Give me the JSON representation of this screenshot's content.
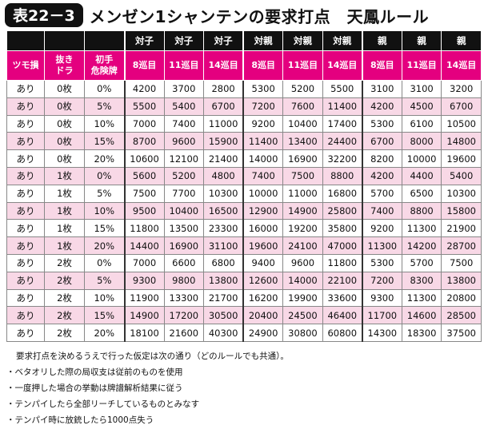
{
  "header": {
    "badge": "表22－3",
    "title": "メンゼン1シャンテンの要求打点　天鳳ルール"
  },
  "table": {
    "header_top": [
      "",
      "",
      "",
      "対子",
      "対子",
      "対子",
      "対親",
      "対親",
      "対親",
      "親",
      "親",
      "親"
    ],
    "header": [
      "ツモ損",
      "抜き\nドラ",
      "初手\n危険牌",
      "8巡目",
      "11巡目",
      "14巡目",
      "8巡目",
      "11巡目",
      "14巡目",
      "8巡目",
      "11巡目",
      "14巡目"
    ],
    "rows": [
      [
        "あり",
        "0枚",
        "0%",
        4200,
        3700,
        2800,
        5300,
        5200,
        5500,
        3100,
        3100,
        3200
      ],
      [
        "あり",
        "0枚",
        "5%",
        5500,
        5400,
        6700,
        7200,
        7600,
        11400,
        4200,
        4500,
        6700
      ],
      [
        "あり",
        "0枚",
        "10%",
        7000,
        7400,
        11000,
        9200,
        10400,
        17400,
        5300,
        6100,
        10500
      ],
      [
        "あり",
        "0枚",
        "15%",
        8700,
        9600,
        15900,
        11400,
        13400,
        24400,
        6700,
        8000,
        14800
      ],
      [
        "あり",
        "0枚",
        "20%",
        10600,
        12100,
        21400,
        14000,
        16900,
        32200,
        8200,
        10000,
        19600
      ],
      [
        "あり",
        "1枚",
        "0%",
        5600,
        5200,
        4800,
        7400,
        7500,
        8800,
        4200,
        4400,
        5400
      ],
      [
        "あり",
        "1枚",
        "5%",
        7500,
        7700,
        10300,
        10000,
        11000,
        16800,
        5700,
        6500,
        10300
      ],
      [
        "あり",
        "1枚",
        "10%",
        9500,
        10400,
        16500,
        12900,
        14900,
        25800,
        7400,
        8800,
        15800
      ],
      [
        "あり",
        "1枚",
        "15%",
        11800,
        13500,
        23300,
        16000,
        19200,
        35800,
        9200,
        11300,
        21900
      ],
      [
        "あり",
        "1枚",
        "20%",
        14400,
        16900,
        31100,
        19600,
        24100,
        47000,
        11300,
        14200,
        28700
      ],
      [
        "あり",
        "2枚",
        "0%",
        7000,
        6600,
        6800,
        9400,
        9600,
        11800,
        5300,
        5700,
        7500
      ],
      [
        "あり",
        "2枚",
        "5%",
        9300,
        9800,
        13800,
        12600,
        14000,
        22100,
        7200,
        8300,
        13800
      ],
      [
        "あり",
        "2枚",
        "10%",
        11900,
        13300,
        21700,
        16200,
        19900,
        33600,
        9300,
        11300,
        20800
      ],
      [
        "あり",
        "2枚",
        "15%",
        14900,
        17200,
        30500,
        20400,
        24500,
        46400,
        11700,
        14600,
        28500
      ],
      [
        "あり",
        "2枚",
        "20%",
        18100,
        21600,
        40300,
        24900,
        30800,
        60800,
        14300,
        18300,
        37500
      ]
    ]
  },
  "notes": [
    "要求打点を決めるうえで行った仮定は次の通り（どのルールでも共通）。",
    "・ベタオリした際の局収支は従前のものを使用",
    "・一度押した場合の挙動は牌譜解析結果に従う",
    "・テンパイしたら全部リーチしているものとみなす",
    "・テンパイ時に放銃したら1000点失う"
  ]
}
